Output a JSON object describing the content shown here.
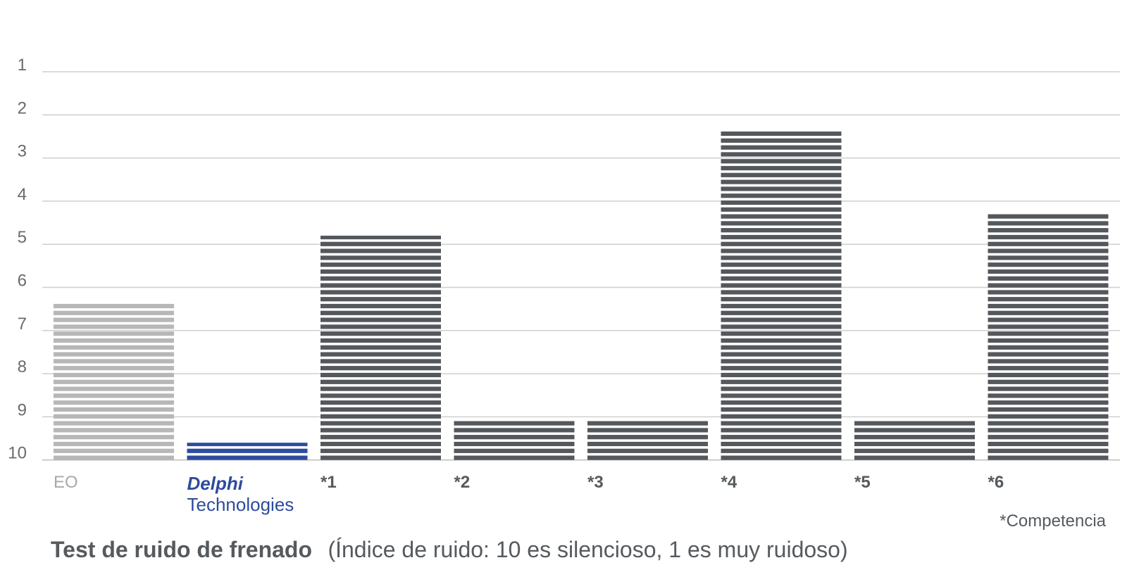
{
  "chart_data": {
    "type": "bar",
    "title": "",
    "xlabel": "",
    "ylabel": "",
    "y_axis_reversed": true,
    "ylim": [
      1,
      10
    ],
    "yticks": [
      "1",
      "2",
      "3",
      "4",
      "5",
      "6",
      "7",
      "8",
      "9",
      "10"
    ],
    "grid": true,
    "bar_style": "horizontal-striped",
    "categories": [
      "EO",
      "Delphi Technologies",
      "*1",
      "*2",
      "*3",
      "*4",
      "*5",
      "*6"
    ],
    "values": [
      6.35,
      9.6,
      4.8,
      9.05,
      9.05,
      2.35,
      9.05,
      4.3
    ],
    "colors": [
      "#b7b7b7",
      "#2d4c9e",
      "#54575b",
      "#54575b",
      "#54575b",
      "#54575b",
      "#54575b",
      "#54575b"
    ],
    "brand": {
      "line1": "Delphi",
      "line2": "Technologies"
    },
    "footnote": "*Competencia",
    "caption": {
      "bold": "Test de ruido de frenado",
      "normal": "(Índice de ruido: 10 es silencioso, 1 es muy ruidoso)"
    }
  }
}
